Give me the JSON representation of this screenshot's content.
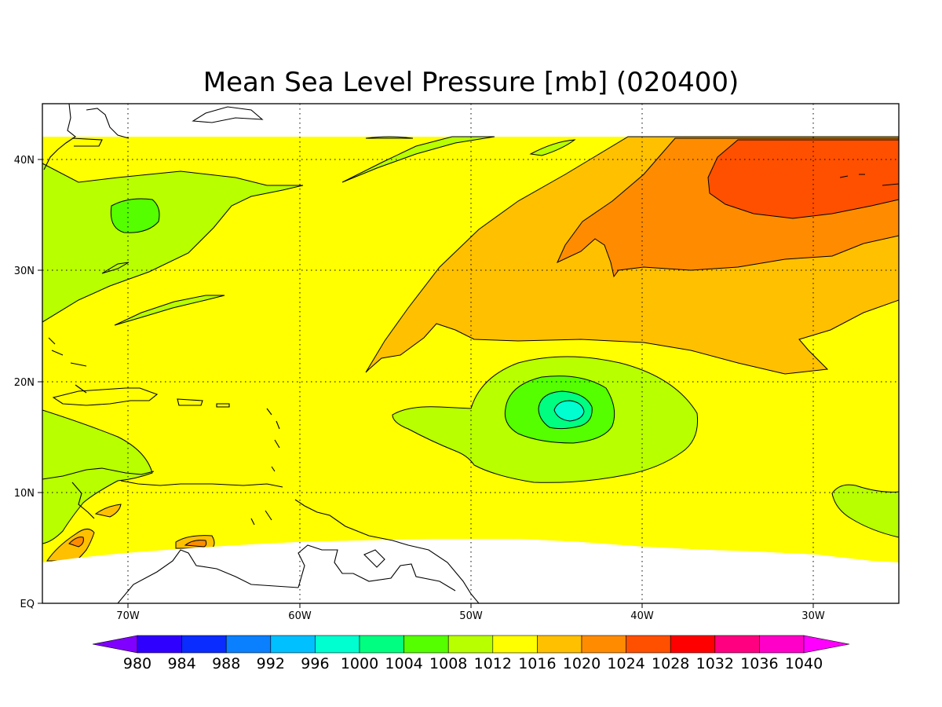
{
  "title": "Mean Sea Level Pressure [mb] (020400)",
  "lat_labels": [
    "40N",
    "30N",
    "20N",
    "10N",
    "EQ"
  ],
  "lon_labels": [
    "70W",
    "60W",
    "50W",
    "40W",
    "30W"
  ],
  "colorbar": {
    "labels": [
      "980",
      "984",
      "988",
      "992",
      "996",
      "1000",
      "1004",
      "1008",
      "1012",
      "1016",
      "1020",
      "1024",
      "1028",
      "1032",
      "1036",
      "1040"
    ],
    "colors": [
      "#8000ff",
      "#3000ff",
      "#0a2cff",
      "#0a80ff",
      "#00c0ff",
      "#00ffd0",
      "#00ff80",
      "#55ff00",
      "#b8ff00",
      "#ffff00",
      "#ffc000",
      "#ff8c00",
      "#ff5000",
      "#ff0000",
      "#ff0080",
      "#ff00c8",
      "#ff00ff"
    ]
  },
  "map_data": {
    "variable": "Mean Sea Level Pressure",
    "units": "mb",
    "lon_range": [
      "75W",
      "25W"
    ],
    "lat_range": [
      "EQ",
      "45N"
    ],
    "low_center_max_level": "1000",
    "high_center_level": "1028"
  }
}
